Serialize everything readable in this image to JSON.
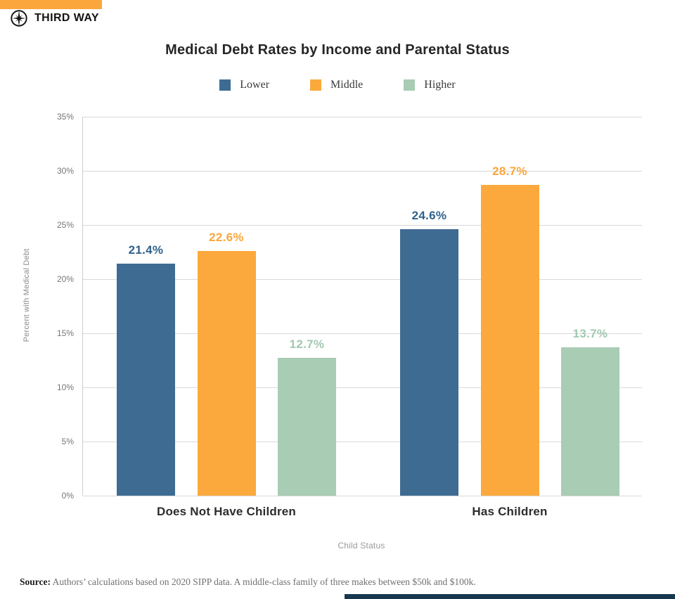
{
  "brand": {
    "name": "THIRD WAY",
    "accent_orange": "#FBA63C",
    "accent_navy": "#16384E"
  },
  "chart_data": {
    "type": "bar",
    "title": "Medical Debt Rates by Income and Parental Status",
    "categories": [
      "Does Not Have Children",
      "Has Children"
    ],
    "series": [
      {
        "name": "Lower",
        "color": "#3E6B92",
        "label_color": "#30618B",
        "values": [
          21.4,
          24.6
        ]
      },
      {
        "name": "Middle",
        "color": "#FBA93C",
        "label_color": "#FBA63C",
        "values": [
          22.6,
          28.7
        ]
      },
      {
        "name": "Higher",
        "color": "#A8CCB4",
        "label_color": "#A2C9B1",
        "values": [
          12.7,
          13.7
        ]
      }
    ],
    "xlabel": "Child Status",
    "ylabel": "Percent with Medical Debt",
    "ylim": [
      0,
      35
    ],
    "ytick_step": 5,
    "ytick_labels": [
      "0%",
      "5%",
      "10%",
      "15%",
      "20%",
      "25%",
      "30%",
      "35%"
    ],
    "grid": true,
    "legend_position": "top",
    "value_label_format": "percent_one_decimal"
  },
  "source": {
    "label": "Source:",
    "text": " Authors’ calculations based on 2020 SIPP data. A middle-class family of three makes between $50k and $100k."
  }
}
